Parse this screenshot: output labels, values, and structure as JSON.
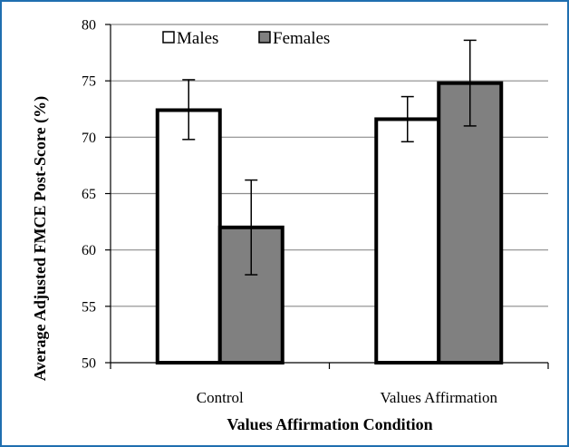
{
  "chart_data": {
    "type": "bar",
    "title": "",
    "xlabel": "Values Affirmation Condition",
    "ylabel": "Average Adjusted FMCE Post-Score (%)",
    "ylim": [
      50,
      80
    ],
    "yticks": [
      50,
      55,
      60,
      65,
      70,
      75,
      80
    ],
    "grid": true,
    "legend_position": "top-left",
    "categories": [
      "Control",
      "Values Affirmation"
    ],
    "series": [
      {
        "name": "Males",
        "color": "#ffffff",
        "values": [
          72.4,
          71.6
        ],
        "error_low": [
          69.8,
          69.6
        ],
        "error_high": [
          75.1,
          73.6
        ]
      },
      {
        "name": "Females",
        "color": "#808080",
        "values": [
          62.0,
          74.8
        ],
        "error_low": [
          57.8,
          71.0
        ],
        "error_high": [
          66.2,
          78.6
        ]
      }
    ]
  }
}
